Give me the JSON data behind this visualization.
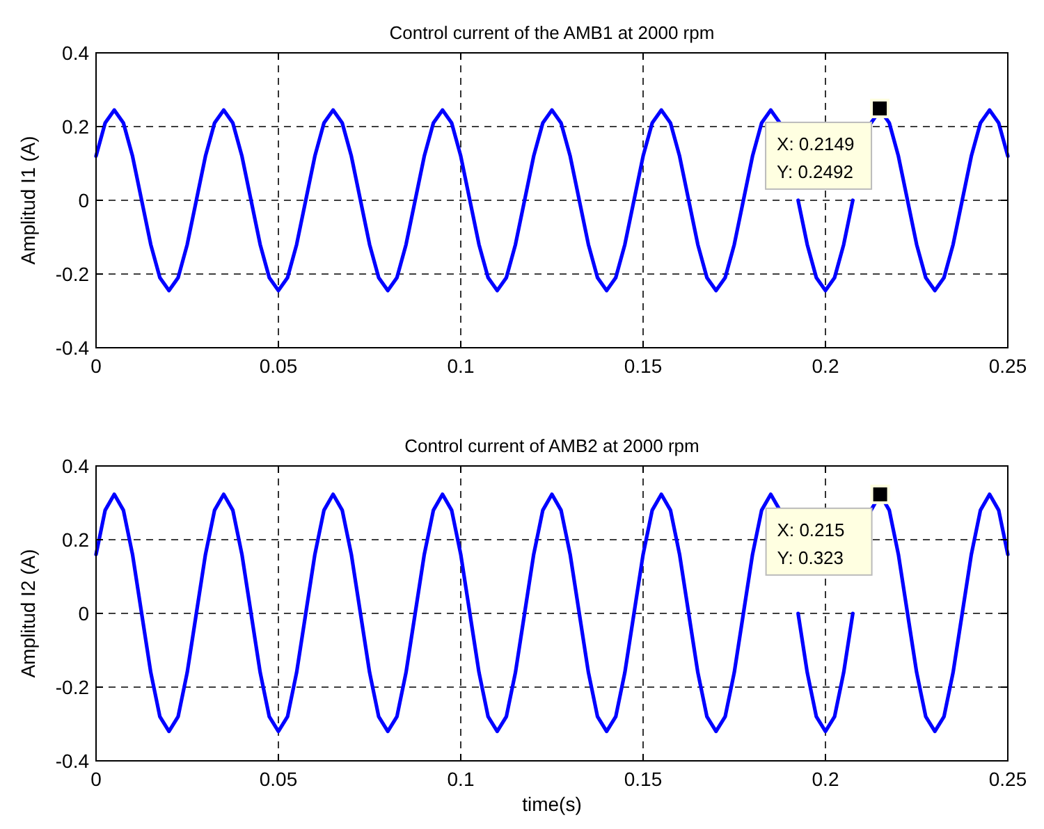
{
  "chart_data": [
    {
      "type": "line",
      "title": "Control current of the AMB1 at 2000 rpm",
      "ylabel": "Amplitud I1 (A)",
      "xlim": [
        0,
        0.25
      ],
      "xticks": [
        0,
        0.05,
        0.1,
        0.15,
        0.2,
        0.25
      ],
      "ylim": [
        -0.4,
        0.4
      ],
      "yticks": [
        -0.4,
        -0.2,
        0,
        0.2,
        0.4
      ],
      "grid": true,
      "line_style": "solid",
      "x": [
        0,
        0.0025,
        0.005,
        0.0075,
        0.01,
        0.0125,
        0.015,
        0.0175,
        0.02,
        0.0225,
        0.025,
        0.0275,
        0.03,
        0.0325,
        0.035,
        0.0375,
        0.04,
        0.0425,
        0.045,
        0.0475,
        0.05,
        0.0525,
        0.055,
        0.0575,
        0.06,
        0.0625,
        0.065,
        0.0675,
        0.07,
        0.0725,
        0.075,
        0.0775,
        0.08,
        0.0825,
        0.085,
        0.0875,
        0.09,
        0.0925,
        0.095,
        0.0975,
        0.1,
        0.1025,
        0.105,
        0.1075,
        0.11,
        0.1125,
        0.115,
        0.1175,
        0.12,
        0.1225,
        0.125,
        0.1275,
        0.13,
        0.1325,
        0.135,
        0.1375,
        0.14,
        0.1425,
        0.145,
        0.1475,
        0.15,
        0.1525,
        0.155,
        0.1575,
        0.16,
        0.1625,
        0.165,
        0.1675,
        0.17,
        0.1725,
        0.175,
        0.1775,
        0.18,
        0.1825,
        0.185,
        0.1875,
        0.19,
        0.1925,
        0.195,
        0.1975,
        0.2,
        0.2025,
        0.205,
        0.2075,
        0.21,
        0.2125,
        0.215,
        0.2175,
        0.22,
        0.2225,
        0.225,
        0.2275,
        0.23,
        0.2325,
        0.235,
        0.2375,
        0.24,
        0.2425,
        0.245,
        0.2475,
        0.25
      ],
      "series": [
        {
          "color": "#0000ff",
          "values": [
            0.12,
            0.21,
            0.245,
            0.21,
            0.12,
            0,
            -0.12,
            -0.21,
            -0.245,
            -0.21,
            -0.12,
            0,
            0.12,
            0.21,
            0.245,
            0.21,
            0.12,
            0,
            -0.12,
            -0.21,
            -0.245,
            -0.21,
            -0.12,
            0,
            0.12,
            0.21,
            0.245,
            0.21,
            0.12,
            0,
            -0.12,
            -0.21,
            -0.245,
            -0.21,
            -0.12,
            0,
            0.12,
            0.21,
            0.245,
            0.21,
            0.12,
            0,
            -0.12,
            -0.21,
            -0.245,
            -0.21,
            -0.12,
            0,
            0.12,
            0.21,
            0.245,
            0.21,
            0.12,
            0,
            -0.12,
            -0.21,
            -0.245,
            -0.21,
            -0.12,
            0,
            0.12,
            0.21,
            0.245,
            0.21,
            0.12,
            0,
            -0.12,
            -0.21,
            -0.245,
            -0.21,
            -0.12,
            0,
            0.12,
            0.21,
            0.245,
            0.21,
            null,
            0,
            -0.12,
            -0.21,
            -0.245,
            -0.21,
            -0.12,
            0,
            null,
            0.21,
            0.245,
            0.21,
            0.12,
            0,
            -0.12,
            -0.21,
            -0.245,
            -0.21,
            -0.12,
            0,
            0.12,
            0.21,
            0.245,
            0.21,
            0.12
          ]
        }
      ],
      "annotations": [
        {
          "text": "X: 0.2149\nY: 0.2492",
          "x": 0.2149,
          "y": 0.2492
        }
      ]
    },
    {
      "type": "line",
      "title": "Control current of AMB2 at 2000 rpm",
      "ylabel": "Amplitud I2 (A)",
      "xlabel": "time(s)",
      "xlim": [
        0,
        0.25
      ],
      "xticks": [
        0,
        0.05,
        0.1,
        0.15,
        0.2,
        0.25
      ],
      "ylim": [
        -0.4,
        0.4
      ],
      "yticks": [
        -0.4,
        -0.2,
        0,
        0.2,
        0.4
      ],
      "grid": true,
      "line_style": "solid",
      "x": [
        0,
        0.0025,
        0.005,
        0.0075,
        0.01,
        0.0125,
        0.015,
        0.0175,
        0.02,
        0.0225,
        0.025,
        0.0275,
        0.03,
        0.0325,
        0.035,
        0.0375,
        0.04,
        0.0425,
        0.045,
        0.0475,
        0.05,
        0.0525,
        0.055,
        0.0575,
        0.06,
        0.0625,
        0.065,
        0.0675,
        0.07,
        0.0725,
        0.075,
        0.0775,
        0.08,
        0.0825,
        0.085,
        0.0875,
        0.09,
        0.0925,
        0.095,
        0.0975,
        0.1,
        0.1025,
        0.105,
        0.1075,
        0.11,
        0.1125,
        0.115,
        0.1175,
        0.12,
        0.1225,
        0.125,
        0.1275,
        0.13,
        0.1325,
        0.135,
        0.1375,
        0.14,
        0.1425,
        0.145,
        0.1475,
        0.15,
        0.1525,
        0.155,
        0.1575,
        0.16,
        0.1625,
        0.165,
        0.1675,
        0.17,
        0.1725,
        0.175,
        0.1775,
        0.18,
        0.1825,
        0.185,
        0.1875,
        0.19,
        0.1925,
        0.195,
        0.1975,
        0.2,
        0.2025,
        0.205,
        0.2075,
        0.21,
        0.2125,
        0.215,
        0.2175,
        0.22,
        0.2225,
        0.225,
        0.2275,
        0.23,
        0.2325,
        0.235,
        0.2375,
        0.24,
        0.2425,
        0.245,
        0.2475,
        0.25
      ],
      "series": [
        {
          "color": "#0000ff",
          "values": [
            0.16,
            0.28,
            0.323,
            0.28,
            0.16,
            0,
            -0.16,
            -0.28,
            -0.32,
            -0.28,
            -0.16,
            0,
            0.16,
            0.28,
            0.323,
            0.28,
            0.16,
            0,
            -0.16,
            -0.28,
            -0.32,
            -0.28,
            -0.16,
            0,
            0.16,
            0.28,
            0.323,
            0.28,
            0.16,
            0,
            -0.16,
            -0.28,
            -0.32,
            -0.28,
            -0.16,
            0,
            0.16,
            0.28,
            0.323,
            0.28,
            0.16,
            0,
            -0.16,
            -0.28,
            -0.32,
            -0.28,
            -0.16,
            0,
            0.16,
            0.28,
            0.323,
            0.28,
            0.16,
            0,
            -0.16,
            -0.28,
            -0.32,
            -0.28,
            -0.16,
            0,
            0.16,
            0.28,
            0.323,
            0.28,
            0.16,
            0,
            -0.16,
            -0.28,
            -0.32,
            -0.28,
            -0.16,
            0,
            0.16,
            0.28,
            0.323,
            0.28,
            null,
            0,
            -0.16,
            -0.28,
            -0.32,
            -0.28,
            -0.16,
            0,
            null,
            0.28,
            0.323,
            0.28,
            0.16,
            0,
            -0.16,
            -0.28,
            -0.32,
            -0.28,
            -0.16,
            0,
            0.16,
            0.28,
            0.323,
            0.28,
            0.16
          ]
        }
      ],
      "annotations": [
        {
          "text": "X: 0.215\nY: 0.323",
          "x": 0.215,
          "y": 0.323
        }
      ]
    }
  ]
}
